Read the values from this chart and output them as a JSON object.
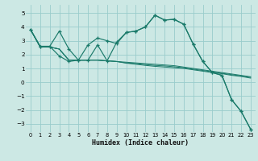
{
  "xlabel": "Humidex (Indice chaleur)",
  "bg_color": "#cce8e4",
  "line_color": "#1a7a6a",
  "grid_color": "#99cccc",
  "xlim": [
    -0.5,
    23.5
  ],
  "ylim": [
    -3.6,
    5.6
  ],
  "yticks": [
    -3,
    -2,
    -1,
    0,
    1,
    2,
    3,
    4,
    5
  ],
  "xticks": [
    0,
    1,
    2,
    3,
    4,
    5,
    6,
    7,
    8,
    9,
    10,
    11,
    12,
    13,
    14,
    15,
    16,
    17,
    18,
    19,
    20,
    21,
    22,
    23
  ],
  "line1_x": [
    0,
    1,
    2,
    3,
    4,
    5,
    6,
    7,
    8,
    9,
    10,
    11,
    12,
    13,
    14,
    15,
    16,
    17,
    18,
    19,
    20,
    21,
    22,
    23
  ],
  "line1_y": [
    3.8,
    2.6,
    2.6,
    3.7,
    2.4,
    1.6,
    2.7,
    3.2,
    3.0,
    2.8,
    3.6,
    3.7,
    4.0,
    4.85,
    4.5,
    4.55,
    4.2,
    2.75,
    1.5,
    0.7,
    0.5,
    -1.25,
    -2.1,
    -3.4
  ],
  "line2_x": [
    0,
    1,
    2,
    3,
    4,
    5,
    6,
    7,
    8,
    9,
    10,
    11,
    12,
    13,
    14,
    15,
    16,
    17,
    18,
    19,
    20,
    21,
    22,
    23
  ],
  "line2_y": [
    3.8,
    2.6,
    2.6,
    1.9,
    1.5,
    1.6,
    1.6,
    2.7,
    1.55,
    2.9,
    3.6,
    3.7,
    4.0,
    4.85,
    4.5,
    4.55,
    4.2,
    2.75,
    1.5,
    0.7,
    0.5,
    -1.25,
    -2.1,
    -3.4
  ],
  "line3_x": [
    0,
    1,
    2,
    3,
    4,
    5,
    6,
    7,
    8,
    9,
    10,
    11,
    12,
    13,
    14,
    15,
    16,
    17,
    18,
    19,
    20,
    21,
    22,
    23
  ],
  "line3_y": [
    3.8,
    2.55,
    2.55,
    2.4,
    1.6,
    1.6,
    1.6,
    1.6,
    1.55,
    1.5,
    1.45,
    1.4,
    1.35,
    1.3,
    1.25,
    1.2,
    1.1,
    1.0,
    0.9,
    0.8,
    0.7,
    0.6,
    0.5,
    0.4
  ],
  "line4_x": [
    0,
    1,
    2,
    3,
    4,
    5,
    6,
    7,
    8,
    9,
    10,
    11,
    12,
    13,
    14,
    15,
    16,
    17,
    18,
    19,
    20,
    21,
    22,
    23
  ],
  "line4_y": [
    3.8,
    2.55,
    2.55,
    2.4,
    1.6,
    1.6,
    1.6,
    1.6,
    1.55,
    1.5,
    1.4,
    1.35,
    1.28,
    1.22,
    1.18,
    1.12,
    1.05,
    0.95,
    0.85,
    0.75,
    0.65,
    0.55,
    0.45,
    0.35
  ],
  "line5_x": [
    0,
    1,
    2,
    3,
    4,
    5,
    6,
    7,
    8,
    9,
    10,
    11,
    12,
    13,
    14,
    15,
    16,
    17,
    18,
    19,
    20,
    21,
    22,
    23
  ],
  "line5_y": [
    3.8,
    2.55,
    2.55,
    2.4,
    1.6,
    1.6,
    1.6,
    1.6,
    1.55,
    1.5,
    1.38,
    1.3,
    1.22,
    1.15,
    1.1,
    1.05,
    1.0,
    0.9,
    0.8,
    0.7,
    0.62,
    0.5,
    0.42,
    0.3
  ]
}
